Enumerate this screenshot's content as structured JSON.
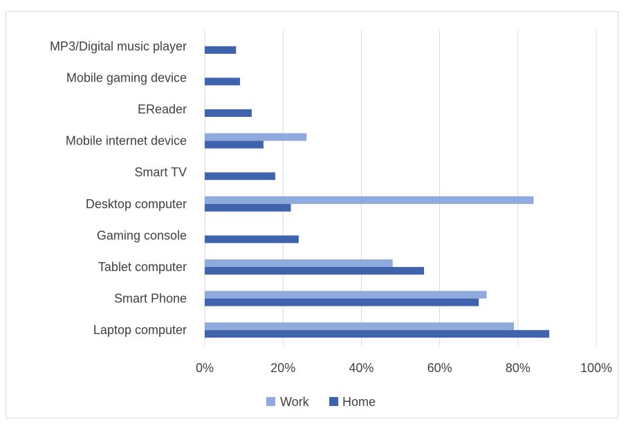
{
  "chart_data": {
    "type": "bar",
    "orientation": "horizontal",
    "categories": [
      "Laptop computer",
      "Smart Phone",
      "Tablet computer",
      "Gaming console",
      "Desktop computer",
      "Smart TV",
      "Mobile internet device",
      "EReader",
      "Mobile gaming device",
      "MP3/Digital music player"
    ],
    "series": [
      {
        "name": "Work",
        "color": "#8faadc",
        "values": [
          79,
          72,
          48,
          null,
          84,
          null,
          26,
          null,
          null,
          null
        ]
      },
      {
        "name": "Home",
        "color": "#3f63ad",
        "values": [
          88,
          70,
          56,
          24,
          22,
          18,
          15,
          12,
          9,
          8
        ]
      }
    ],
    "x_ticks": [
      "0%",
      "20%",
      "40%",
      "60%",
      "80%",
      "100%"
    ],
    "xlim": [
      0,
      100
    ],
    "grid": true,
    "legend_position": "bottom",
    "title": "",
    "xlabel": "",
    "ylabel": ""
  }
}
